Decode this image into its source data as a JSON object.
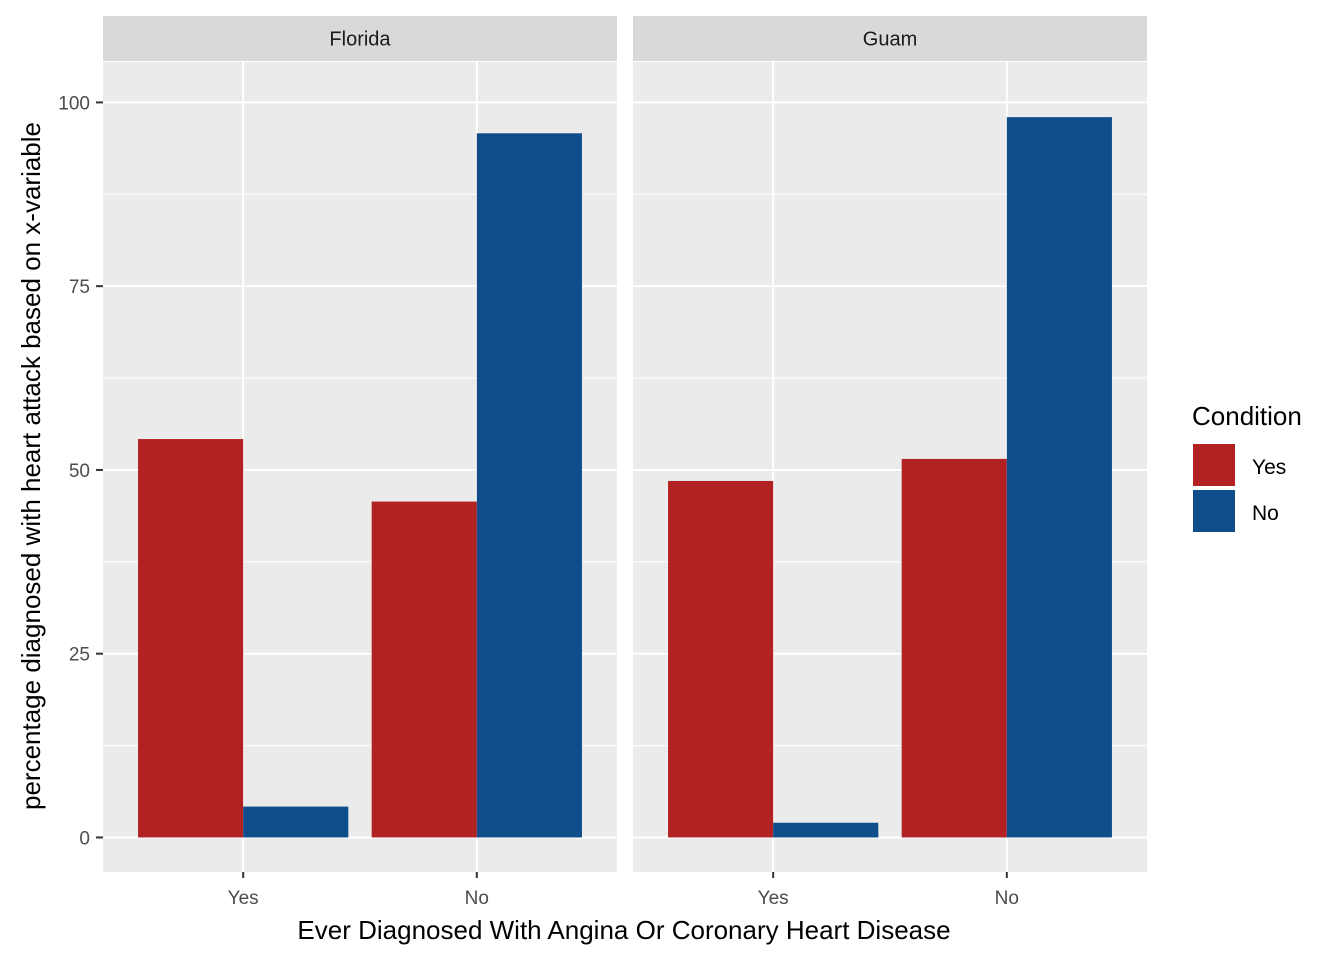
{
  "chart_data": {
    "type": "bar",
    "xlabel": "Ever Diagnosed With Angina Or Coronary Heart Disease",
    "ylabel": "percentage diagnosed with heart attack based on x-variable",
    "ylim": [
      -4.7,
      105.5
    ],
    "yticks": [
      0,
      25,
      50,
      75,
      100
    ],
    "categories": [
      "Yes",
      "No"
    ],
    "grid": true,
    "legend": {
      "title": "Condition",
      "position": "right",
      "entries": [
        {
          "name": "Yes",
          "color": "#B22222"
        },
        {
          "name": "No",
          "color": "#104E8B"
        }
      ]
    },
    "panels": [
      {
        "name": "Florida",
        "series": [
          {
            "name": "Yes",
            "values": [
              54.2,
              45.7
            ]
          },
          {
            "name": "No",
            "values": [
              4.2,
              95.8
            ]
          }
        ]
      },
      {
        "name": "Guam",
        "series": [
          {
            "name": "Yes",
            "values": [
              48.5,
              51.5
            ]
          },
          {
            "name": "No",
            "values": [
              2.0,
              98.0
            ]
          }
        ]
      }
    ]
  },
  "colors": {
    "panel_background": "#EBEBEB",
    "strip_background": "#D9D9D9",
    "grid": "#FFFFFF"
  }
}
